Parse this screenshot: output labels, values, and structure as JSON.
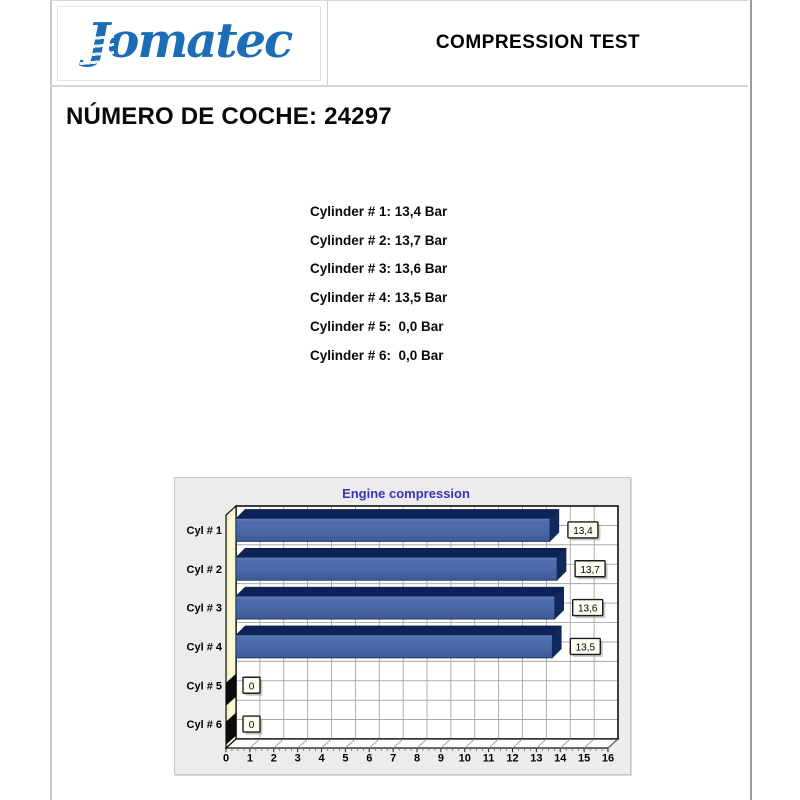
{
  "header": {
    "logo_text": "Jomatec",
    "logo_color": "#1b6eb5",
    "title": "COMPRESSION TEST"
  },
  "car_number": {
    "label": "NÚMERO DE COCHE:",
    "value": "24297",
    "text": "NÚMERO DE COCHE: 24297"
  },
  "readings": [
    "Cylinder # 1: 13,4 Bar",
    "Cylinder # 2: 13,7 Bar",
    "Cylinder # 3: 13,6 Bar",
    "Cylinder # 4: 13,5 Bar",
    "Cylinder # 5:  0,0 Bar",
    "Cylinder # 6:  0,0 Bar"
  ],
  "chart_data": {
    "type": "bar",
    "orientation": "horizontal",
    "style": "3d",
    "title": "Engine compression",
    "title_color": "#3a35b5",
    "categories": [
      "Cyl # 1",
      "Cyl # 2",
      "Cyl # 3",
      "Cyl # 4",
      "Cyl # 5",
      "Cyl # 6"
    ],
    "values": [
      13.4,
      13.7,
      13.6,
      13.5,
      0,
      0
    ],
    "value_labels": [
      "13,4",
      "13,7",
      "13,6",
      "13,5",
      "0",
      "0"
    ],
    "unit": "Bar",
    "xlabel": "",
    "ylabel": "",
    "xlim": [
      0,
      16
    ],
    "x_ticks": [
      0,
      1,
      2,
      3,
      4,
      5,
      6,
      7,
      8,
      9,
      10,
      11,
      12,
      13,
      14,
      15,
      16
    ],
    "grid": true,
    "legend": false,
    "colors": {
      "bar_face": "#4a68a7",
      "bar_top": "#0d2357",
      "bar_side": "#102a5e",
      "wall_yellow": "#f6f6c8",
      "panel_bg": "#ececec",
      "plot_bg": "#ffffff",
      "grid": "#9c9c9c",
      "zero_mark": "#0b0b0b"
    }
  }
}
